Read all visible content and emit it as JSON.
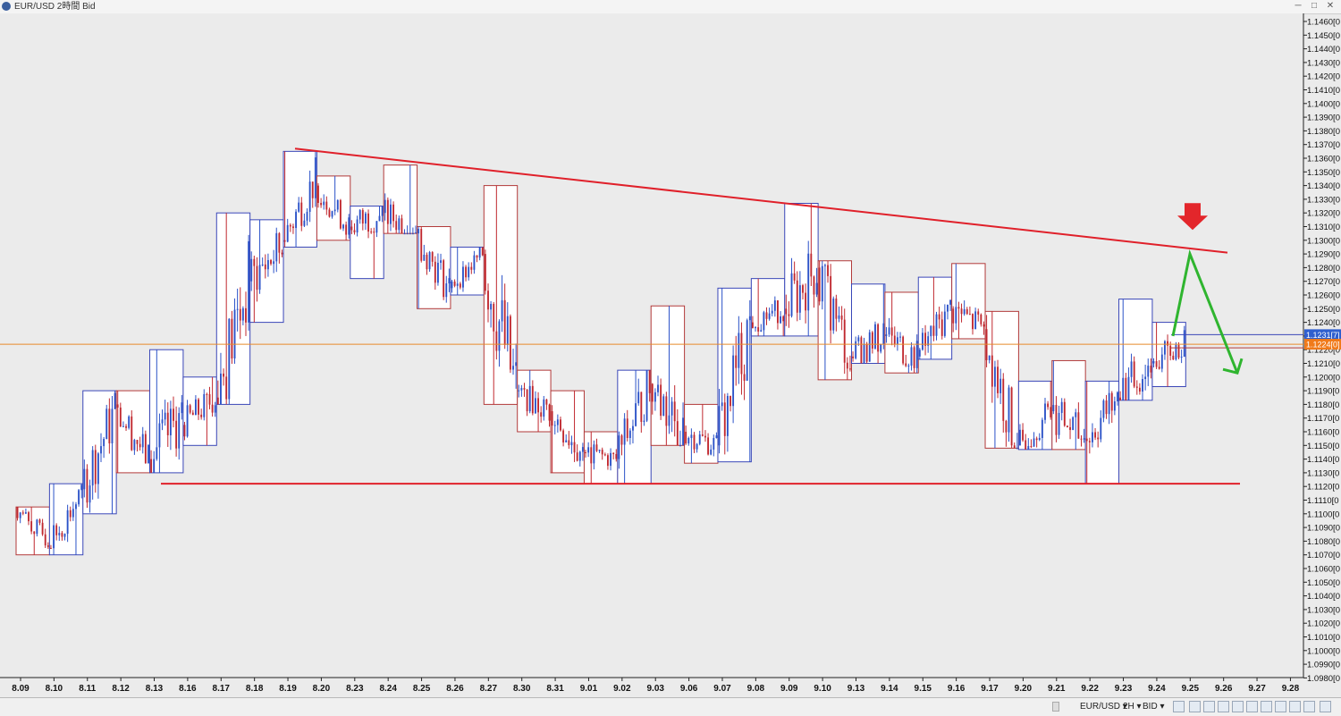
{
  "window": {
    "title": "EUR/USD 2時間 Bid"
  },
  "statusbar": {
    "symbol": "EUR/USD ▾",
    "timeframe": "2H ▾",
    "price_side": "BID ▾"
  },
  "colors": {
    "up": "#2b52c8",
    "down": "#c0282f",
    "box_up": "#3a47b8",
    "box_down": "#b23a3a",
    "trendline": "#e0202a",
    "projection": "#2fb52f",
    "current_line": "#e88a2a"
  },
  "badges": {
    "ask": "1.1231[7]",
    "bid": "1.1224[0]"
  },
  "chart_data": {
    "type": "candlestick",
    "title": "EUR/USD 2時間 Bid",
    "y_range": [
      1.098,
      1.146
    ],
    "y_ticks": [
      "1.1460[0",
      "1.1450[0",
      "1.1440[0",
      "1.1430[0",
      "1.1420[0",
      "1.1410[0",
      "1.1400[0",
      "1.1390[0",
      "1.1380[0",
      "1.1370[0",
      "1.1360[0",
      "1.1350[0",
      "1.1340[0",
      "1.1330[0",
      "1.1320[0",
      "1.1310[0",
      "1.1300[0",
      "1.1290[0",
      "1.1280[0",
      "1.1270[0",
      "1.1260[0",
      "1.1250[0",
      "1.1240[0",
      "1.1230[0",
      "1.1220[0",
      "1.1210[0",
      "1.1200[0",
      "1.1190[0",
      "1.1180[0",
      "1.1170[0",
      "1.1160[0",
      "1.1150[0",
      "1.1140[0",
      "1.1130[0",
      "1.1120[0",
      "1.1110[0",
      "1.1100[0",
      "1.1090[0",
      "1.1080[0",
      "1.1070[0",
      "1.1060[0",
      "1.1050[0",
      "1.1040[0",
      "1.1030[0",
      "1.1020[0",
      "1.1010[0",
      "1.1000[0",
      "1.0990[0",
      "1.0980[0"
    ],
    "x_ticks": [
      "8.09",
      "8.10",
      "8.11",
      "8.12",
      "8.13",
      "8.16",
      "8.17",
      "8.18",
      "8.19",
      "8.20",
      "8.23",
      "8.24",
      "8.25",
      "8.26",
      "8.27",
      "8.30",
      "8.31",
      "9.01",
      "9.02",
      "9.03",
      "9.06",
      "9.07",
      "9.08",
      "9.09",
      "9.10",
      "9.13",
      "9.14",
      "9.15",
      "9.16",
      "9.17",
      "9.20",
      "9.21",
      "9.22",
      "9.23",
      "9.24",
      "9.25",
      "9.26",
      "9.27",
      "9.28"
    ],
    "daily_ranges": [
      {
        "date": "8.09",
        "open": 1.1105,
        "high": 1.1105,
        "low": 1.107,
        "close": 1.108
      },
      {
        "date": "8.10",
        "open": 1.1075,
        "high": 1.1122,
        "low": 1.107,
        "close": 1.1115
      },
      {
        "date": "8.11",
        "open": 1.1118,
        "high": 1.119,
        "low": 1.11,
        "close": 1.1175
      },
      {
        "date": "8.12",
        "open": 1.118,
        "high": 1.119,
        "low": 1.113,
        "close": 1.114
      },
      {
        "date": "8.13",
        "open": 1.114,
        "high": 1.122,
        "low": 1.113,
        "close": 1.117
      },
      {
        "date": "8.16",
        "open": 1.1165,
        "high": 1.12,
        "low": 1.115,
        "close": 1.1185
      },
      {
        "date": "8.17",
        "open": 1.1185,
        "high": 1.132,
        "low": 1.118,
        "close": 1.127
      },
      {
        "date": "8.18",
        "open": 1.127,
        "high": 1.1315,
        "low": 1.124,
        "close": 1.1295
      },
      {
        "date": "8.19",
        "open": 1.13,
        "high": 1.1365,
        "low": 1.1295,
        "close": 1.1345
      },
      {
        "date": "8.20",
        "open": 1.134,
        "high": 1.1347,
        "low": 1.13,
        "close": 1.131
      },
      {
        "date": "8.23",
        "open": 1.131,
        "high": 1.1325,
        "low": 1.1272,
        "close": 1.132
      },
      {
        "date": "8.24",
        "open": 1.132,
        "high": 1.1355,
        "low": 1.1305,
        "close": 1.1308
      },
      {
        "date": "8.25",
        "open": 1.1305,
        "high": 1.131,
        "low": 1.125,
        "close": 1.1265
      },
      {
        "date": "8.26",
        "open": 1.1265,
        "high": 1.1295,
        "low": 1.126,
        "close": 1.129
      },
      {
        "date": "8.27",
        "open": 1.129,
        "high": 1.134,
        "low": 1.118,
        "close": 1.119
      },
      {
        "date": "8.30",
        "open": 1.119,
        "high": 1.1205,
        "low": 1.116,
        "close": 1.1175
      },
      {
        "date": "8.31",
        "open": 1.1175,
        "high": 1.119,
        "low": 1.113,
        "close": 1.1145
      },
      {
        "date": "9.01",
        "open": 1.1145,
        "high": 1.116,
        "low": 1.1122,
        "close": 1.114
      },
      {
        "date": "9.02",
        "open": 1.114,
        "high": 1.1205,
        "low": 1.1122,
        "close": 1.1195
      },
      {
        "date": "9.03",
        "open": 1.1195,
        "high": 1.1252,
        "low": 1.115,
        "close": 1.116
      },
      {
        "date": "9.06",
        "open": 1.116,
        "high": 1.118,
        "low": 1.1137,
        "close": 1.115
      },
      {
        "date": "9.07",
        "open": 1.115,
        "high": 1.1265,
        "low": 1.1138,
        "close": 1.124
      },
      {
        "date": "9.08",
        "open": 1.124,
        "high": 1.1272,
        "low": 1.123,
        "close": 1.125
      },
      {
        "date": "9.09",
        "open": 1.125,
        "high": 1.1327,
        "low": 1.123,
        "close": 1.128
      },
      {
        "date": "9.10",
        "open": 1.128,
        "high": 1.1285,
        "low": 1.1198,
        "close": 1.1215
      },
      {
        "date": "9.13",
        "open": 1.1215,
        "high": 1.1268,
        "low": 1.121,
        "close": 1.123
      },
      {
        "date": "9.14",
        "open": 1.123,
        "high": 1.1262,
        "low": 1.1203,
        "close": 1.1215
      },
      {
        "date": "9.15",
        "open": 1.1215,
        "high": 1.1273,
        "low": 1.1213,
        "close": 1.125
      },
      {
        "date": "9.16",
        "open": 1.125,
        "high": 1.1283,
        "low": 1.1228,
        "close": 1.1235
      },
      {
        "date": "9.17",
        "open": 1.1235,
        "high": 1.1248,
        "low": 1.1148,
        "close": 1.115
      },
      {
        "date": "9.20",
        "open": 1.115,
        "high": 1.1197,
        "low": 1.1147,
        "close": 1.1175
      },
      {
        "date": "9.21",
        "open": 1.1175,
        "high": 1.1212,
        "low": 1.1147,
        "close": 1.1155
      },
      {
        "date": "9.22",
        "open": 1.1155,
        "high": 1.1197,
        "low": 1.1122,
        "close": 1.1185
      },
      {
        "date": "9.23",
        "open": 1.1185,
        "high": 1.1257,
        "low": 1.1183,
        "close": 1.121
      },
      {
        "date": "9.24",
        "open": 1.121,
        "high": 1.124,
        "low": 1.1193,
        "close": 1.1224
      }
    ],
    "grid": false
  }
}
